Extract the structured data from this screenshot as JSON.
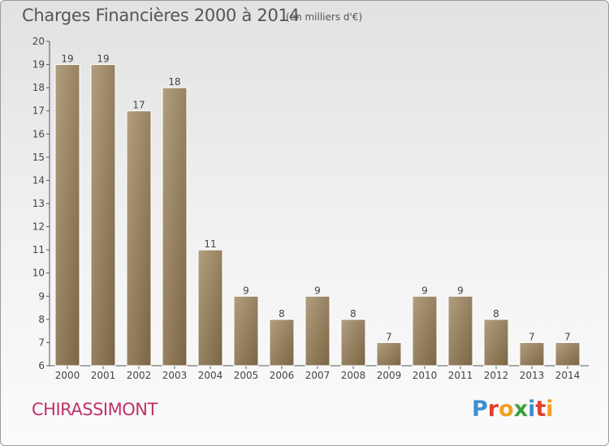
{
  "header": {
    "title": "Charges Financières 2000 à 2014",
    "subtitle": "(en milliers d'€)"
  },
  "footer": {
    "commune": "CHIRASSIMONT",
    "logo": "Proxiti"
  },
  "colors": {
    "bar_dark": "#7a6544",
    "bar_light": "#b29f7f",
    "commune": "#c0326a"
  },
  "chart_data": {
    "type": "bar",
    "title": "Charges Financières 2000 à 2014",
    "subtitle": "(en milliers d'€)",
    "categories": [
      "2000",
      "2001",
      "2002",
      "2003",
      "2004",
      "2005",
      "2006",
      "2007",
      "2008",
      "2009",
      "2010",
      "2011",
      "2012",
      "2013",
      "2014"
    ],
    "values": [
      19,
      19,
      17,
      18,
      11,
      9,
      8,
      9,
      8,
      7,
      9,
      9,
      8,
      7,
      7
    ],
    "xlabel": "",
    "ylabel": "",
    "ylim": [
      6,
      20
    ],
    "yticks": [
      6,
      7,
      8,
      9,
      10,
      11,
      12,
      13,
      14,
      15,
      16,
      17,
      18,
      19,
      20
    ],
    "grid": false,
    "data_labels": true
  }
}
